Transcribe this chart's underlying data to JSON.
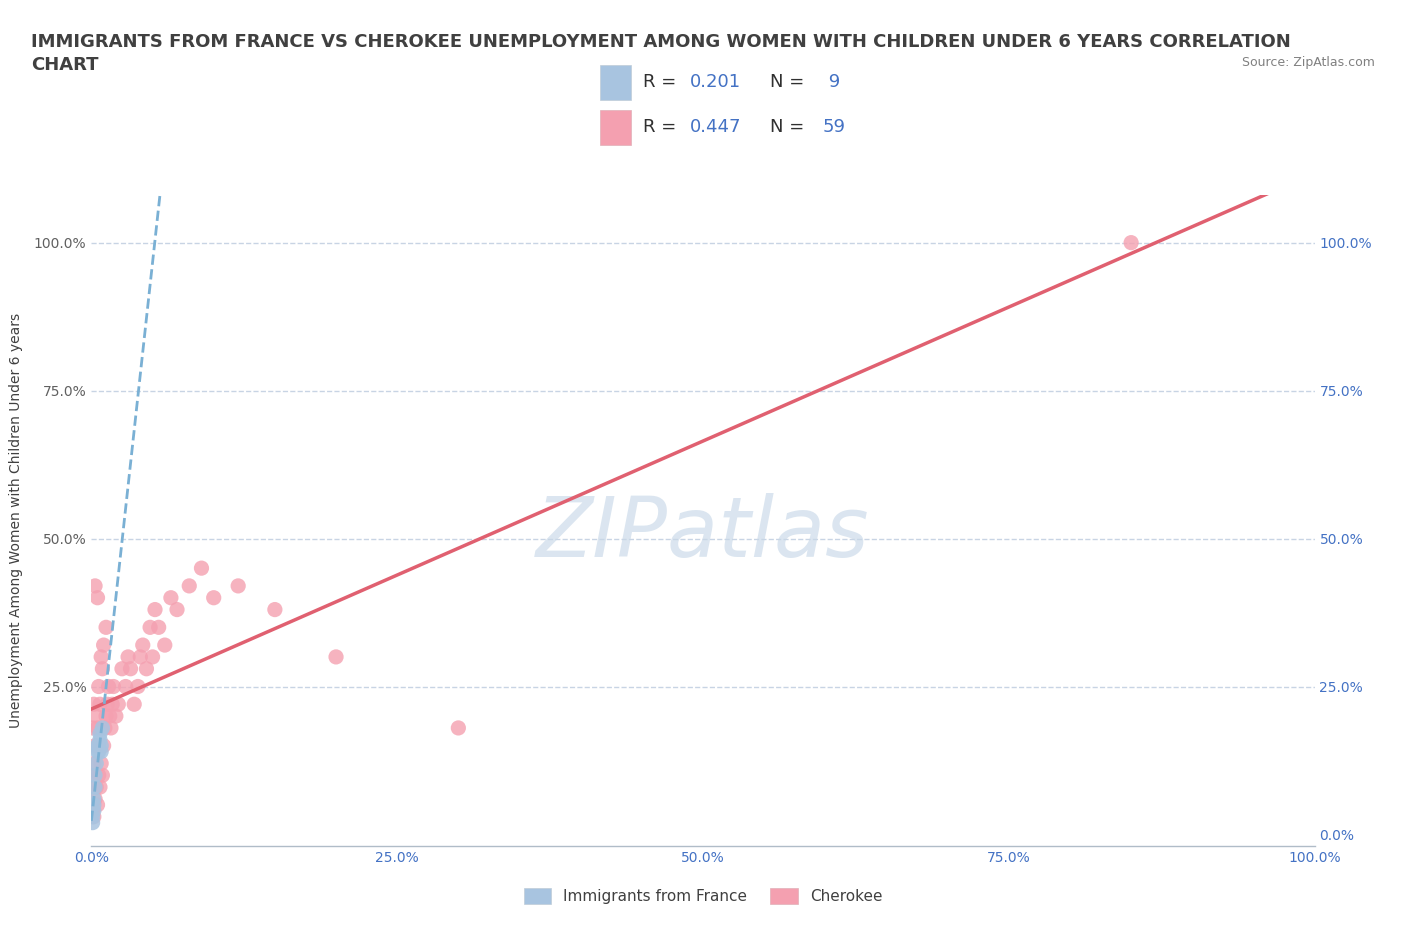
{
  "title_line1": "IMMIGRANTS FROM FRANCE VS CHEROKEE UNEMPLOYMENT AMONG WOMEN WITH CHILDREN UNDER 6 YEARS CORRELATION",
  "title_line2": "CHART",
  "source": "Source: ZipAtlas.com",
  "ylabel": "Unemployment Among Women with Children Under 6 years",
  "watermark": "ZIPatlas",
  "xlim": [
    0.0,
    1.0
  ],
  "ylim": [
    -0.02,
    1.08
  ],
  "xticks": [
    0.0,
    0.25,
    0.5,
    0.75,
    1.0
  ],
  "yticks": [
    0.0,
    0.25,
    0.5,
    0.75,
    1.0
  ],
  "xticklabels": [
    "0.0%",
    "25.0%",
    "50.0%",
    "75.0%",
    "100.0%"
  ],
  "yticklabels": [
    "0.0%",
    "25.0%",
    "50.0%",
    "75.0%",
    "100.0%"
  ],
  "series1_label": "Immigrants from France",
  "series1_color": "#a8c4e0",
  "series1_edge_color": "#7ab0d4",
  "series2_label": "Cherokee",
  "series2_color": "#f4a0b0",
  "series2_edge_color": "#e87090",
  "series1_x": [
    0.001,
    0.001,
    0.002,
    0.002,
    0.002,
    0.003,
    0.003,
    0.004,
    0.005,
    0.005,
    0.006,
    0.006,
    0.007,
    0.007,
    0.008,
    0.008,
    0.009
  ],
  "series1_y": [
    0.02,
    0.03,
    0.04,
    0.05,
    0.06,
    0.08,
    0.1,
    0.12,
    0.14,
    0.15,
    0.14,
    0.15,
    0.16,
    0.17,
    0.14,
    0.15,
    0.18
  ],
  "series2_x": [
    0.001,
    0.001,
    0.001,
    0.002,
    0.002,
    0.002,
    0.003,
    0.003,
    0.003,
    0.004,
    0.004,
    0.005,
    0.005,
    0.005,
    0.006,
    0.006,
    0.007,
    0.007,
    0.008,
    0.008,
    0.009,
    0.009,
    0.01,
    0.01,
    0.011,
    0.012,
    0.012,
    0.013,
    0.014,
    0.015,
    0.016,
    0.017,
    0.018,
    0.02,
    0.022,
    0.025,
    0.028,
    0.03,
    0.032,
    0.035,
    0.038,
    0.04,
    0.042,
    0.045,
    0.048,
    0.05,
    0.052,
    0.055,
    0.06,
    0.065,
    0.07,
    0.08,
    0.09,
    0.1,
    0.12,
    0.15,
    0.2,
    0.3,
    0.85
  ],
  "series2_y": [
    0.04,
    0.1,
    0.18,
    0.03,
    0.12,
    0.22,
    0.06,
    0.15,
    0.42,
    0.08,
    0.2,
    0.05,
    0.18,
    0.4,
    0.1,
    0.25,
    0.08,
    0.22,
    0.12,
    0.3,
    0.1,
    0.28,
    0.15,
    0.32,
    0.18,
    0.2,
    0.35,
    0.22,
    0.25,
    0.2,
    0.18,
    0.22,
    0.25,
    0.2,
    0.22,
    0.28,
    0.25,
    0.3,
    0.28,
    0.22,
    0.25,
    0.3,
    0.32,
    0.28,
    0.35,
    0.3,
    0.38,
    0.35,
    0.32,
    0.4,
    0.38,
    0.42,
    0.45,
    0.4,
    0.42,
    0.38,
    0.3,
    0.18,
    1.0
  ],
  "trend1_color": "#7ab0d4",
  "trend2_color": "#e06070",
  "title_fontsize": 13,
  "axis_label_fontsize": 10,
  "tick_fontsize": 10,
  "legend_fontsize": 12,
  "watermark_color": "#c8d8e8",
  "watermark_fontsize": 60,
  "right_ytick_color": "#4472c4",
  "xtick_color": "#4472c4",
  "background_color": "#ffffff",
  "grid_color": "#c8d4e4",
  "title_color": "#404040",
  "source_color": "#808080"
}
